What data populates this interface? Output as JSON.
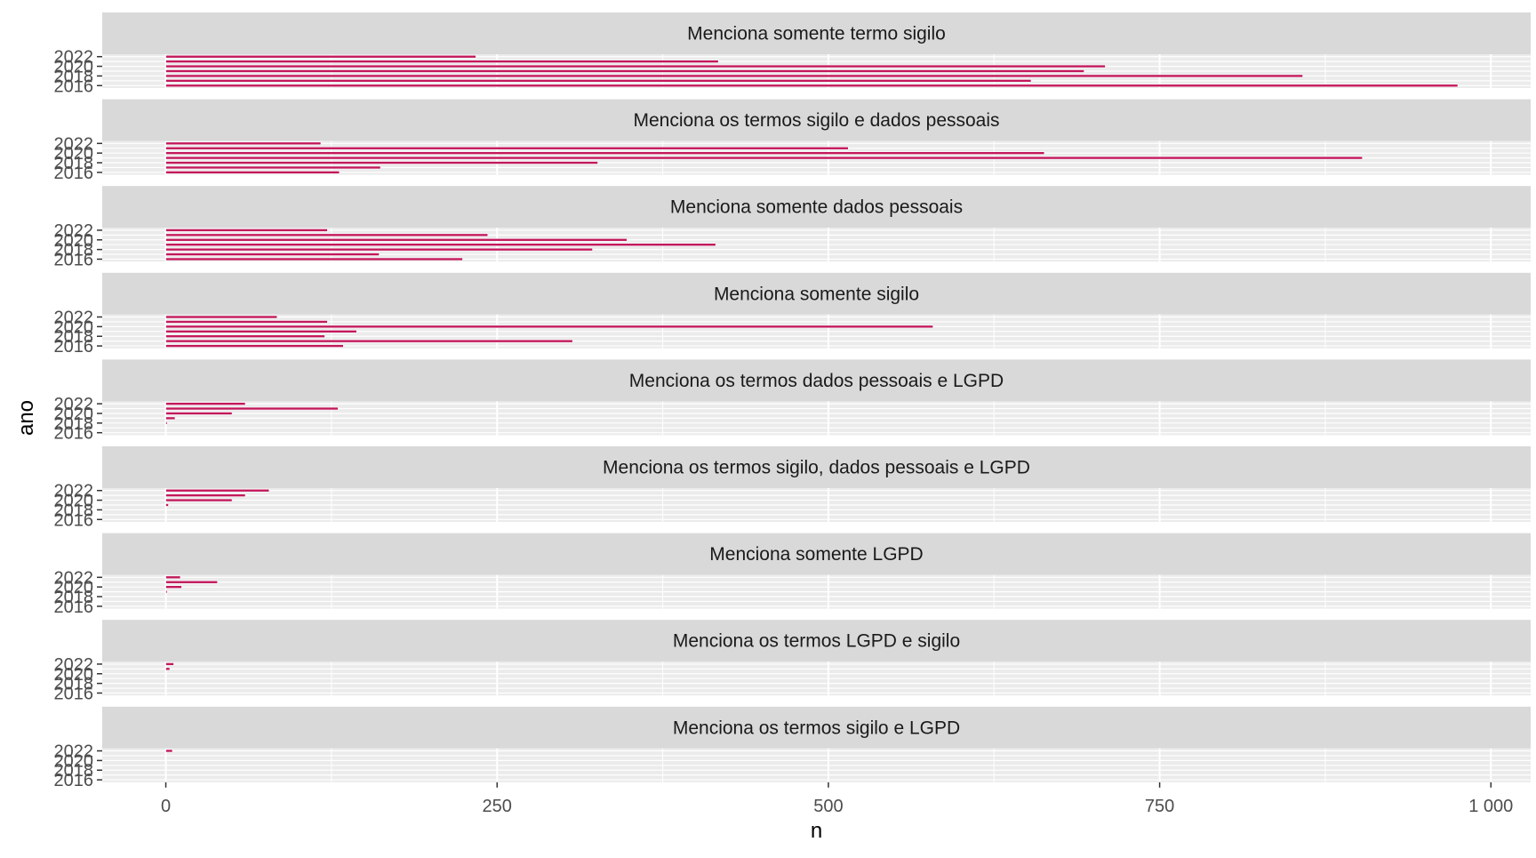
{
  "chart_data": {
    "type": "bar",
    "orientation": "horizontal",
    "facet_layout": "single column, shared x axis",
    "xlabel": "n",
    "ylabel": "ano",
    "xlim": [
      -48,
      1030
    ],
    "x_ticks": [
      0,
      250,
      500,
      750,
      1000
    ],
    "x_tick_labels": [
      "0",
      "250",
      "500",
      "750",
      "1 000"
    ],
    "y_ticks": [
      2016,
      2018,
      2020,
      2022
    ],
    "y_tick_labels": [
      "2016",
      "2018",
      "2020",
      "2022"
    ],
    "years": [
      2016,
      2017,
      2018,
      2019,
      2020,
      2021,
      2022
    ],
    "grid": true,
    "bar_color": "#C2185B",
    "strip_color": "#D9D9D9",
    "panel_color": "#EBEBEB",
    "facets": [
      {
        "title": "Menciona somente termo sigilo",
        "values": [
          975,
          653,
          858,
          693,
          709,
          417,
          234
        ]
      },
      {
        "title": "Menciona os termos sigilo e dados pessoais",
        "values": [
          131,
          162,
          326,
          903,
          663,
          515,
          117
        ]
      },
      {
        "title": "Menciona somente dados pessoais",
        "values": [
          224,
          161,
          322,
          415,
          348,
          243,
          122
        ]
      },
      {
        "title": "Menciona somente sigilo",
        "values": [
          134,
          307,
          120,
          144,
          579,
          122,
          84
        ]
      },
      {
        "title": "Menciona os termos dados pessoais e LGPD",
        "values": [
          0,
          0,
          1,
          7,
          50,
          130,
          60
        ]
      },
      {
        "title": "Menciona os termos sigilo, dados pessoais e LGPD",
        "values": [
          0,
          0,
          0,
          2,
          50,
          60,
          78
        ]
      },
      {
        "title": "Menciona somente LGPD",
        "values": [
          0,
          0,
          0,
          1,
          12,
          39,
          11
        ]
      },
      {
        "title": "Menciona os termos LGPD e sigilo",
        "values": [
          0,
          0,
          0,
          0,
          0,
          3,
          6
        ]
      },
      {
        "title": "Menciona os termos sigilo e LGPD",
        "values": [
          0,
          0,
          0,
          0,
          0,
          0,
          5
        ]
      }
    ]
  }
}
